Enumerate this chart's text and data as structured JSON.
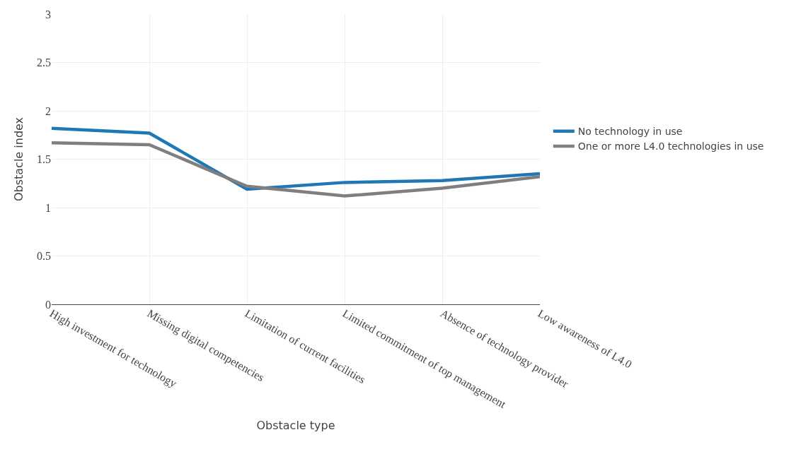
{
  "chart_data": {
    "type": "line",
    "xlabel": "Obstacle type",
    "ylabel": "Obstacle index",
    "categories": [
      "High investment for technology",
      "Missing digital competencies",
      "Limitation of current facilities",
      "Limited commitment of top management",
      "Absence of technology provider",
      "Low awareness of L4.0"
    ],
    "series": [
      {
        "name": "No technology in use",
        "color": "#1f77b4",
        "values": [
          1.82,
          1.77,
          1.19,
          1.26,
          1.28,
          1.35
        ]
      },
      {
        "name": "One or more L4.0 technologies in use",
        "color": "#7f7f7f",
        "values": [
          1.67,
          1.65,
          1.22,
          1.12,
          1.2,
          1.32
        ]
      }
    ],
    "ylim": [
      0,
      3
    ],
    "yticks": [
      0,
      0.5,
      1,
      1.5,
      2,
      2.5,
      3
    ],
    "grid": true,
    "legend": "right",
    "marker": "none",
    "line_style": "solid"
  }
}
